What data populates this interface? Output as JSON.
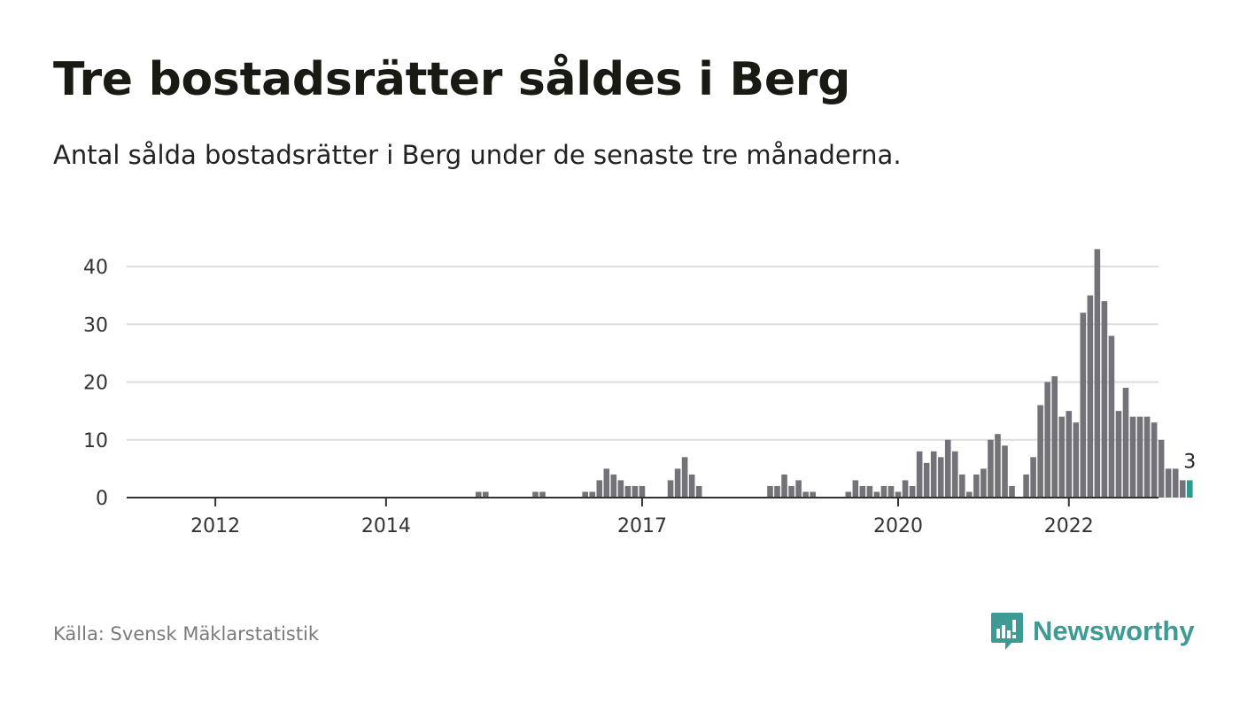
{
  "title": "Tre bostadsrätter såldes i Berg",
  "subtitle": "Antal sålda bostadsrätter i Berg under de senaste tre månaderna.",
  "source": "Källa: Svensk Mäklarstatistik",
  "logo": {
    "text": "Newsworthy",
    "icon": "newsworthy-bar-chart-icon"
  },
  "colors": {
    "bar": "#737278",
    "highlight": "#2a9d8f",
    "grid": "#dddddd",
    "axis": "#333333",
    "brand": "#3d9a95"
  },
  "chart_data": {
    "type": "bar",
    "x_start": "2011-01",
    "x_step": "month",
    "ylim": [
      0,
      43
    ],
    "yticks": [
      0,
      10,
      20,
      30,
      40
    ],
    "xticks": [
      {
        "label": "2012",
        "x": "2012-01"
      },
      {
        "label": "2014",
        "x": "2014-01"
      },
      {
        "label": "2017",
        "x": "2017-01"
      },
      {
        "label": "2020",
        "x": "2020-01"
      },
      {
        "label": "2022",
        "x": "2022-01"
      }
    ],
    "grid": true,
    "highlight_last": true,
    "last_value_label": "3",
    "values": [
      0,
      0,
      0,
      0,
      0,
      0,
      0,
      0,
      0,
      0,
      0,
      0,
      0,
      0,
      0,
      0,
      0,
      0,
      0,
      0,
      0,
      0,
      0,
      0,
      0,
      0,
      0,
      0,
      0,
      0,
      0,
      0,
      0,
      0,
      0,
      0,
      0,
      0,
      0,
      0,
      0,
      0,
      0,
      0,
      0,
      0,
      0,
      0,
      0,
      1,
      1,
      0,
      0,
      0,
      0,
      0,
      0,
      1,
      1,
      0,
      0,
      0,
      0,
      0,
      1,
      1,
      3,
      5,
      4,
      3,
      2,
      2,
      2,
      0,
      0,
      0,
      3,
      5,
      7,
      4,
      2,
      0,
      0,
      0,
      0,
      0,
      0,
      0,
      0,
      0,
      2,
      2,
      4,
      2,
      3,
      1,
      1,
      0,
      0,
      0,
      0,
      1,
      3,
      2,
      2,
      1,
      2,
      2,
      1,
      3,
      2,
      8,
      6,
      8,
      7,
      10,
      8,
      4,
      1,
      4,
      5,
      10,
      11,
      9,
      2,
      0,
      4,
      7,
      16,
      20,
      21,
      14,
      15,
      13,
      32,
      35,
      43,
      34,
      28,
      15,
      19,
      14,
      14,
      14,
      13,
      10,
      5,
      5,
      3,
      3
    ]
  }
}
